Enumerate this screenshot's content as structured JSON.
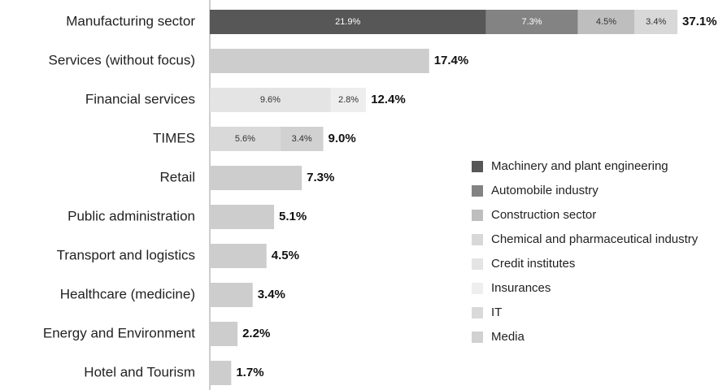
{
  "chart_data": {
    "type": "stacked-bar-horizontal",
    "categories": [
      "Manufacturing sector",
      "Services (without focus)",
      "Financial services",
      "TIMES",
      "Retail",
      "Public administration",
      "Transport and logistics",
      "Healthcare (medicine)",
      "Energy and Environment",
      "Hotel and Tourism"
    ],
    "xlim": [
      0,
      40
    ],
    "series": [
      {
        "name": "Machinery and plant engineering",
        "color": "#575757",
        "values": [
          21.9,
          null,
          null,
          null,
          null,
          null,
          null,
          null,
          null,
          null
        ],
        "value_labels": [
          "21.9%",
          null,
          null,
          null,
          null,
          null,
          null,
          null,
          null,
          null
        ]
      },
      {
        "name": "Automobile industry",
        "color": "#838383",
        "values": [
          7.3,
          null,
          null,
          null,
          null,
          null,
          null,
          null,
          null,
          null
        ],
        "value_labels": [
          "7.3%",
          null,
          null,
          null,
          null,
          null,
          null,
          null,
          null,
          null
        ]
      },
      {
        "name": "Construction sector",
        "color": "#bebebe",
        "values": [
          4.5,
          null,
          null,
          null,
          null,
          null,
          null,
          null,
          null,
          null
        ],
        "value_labels": [
          "4.5%",
          null,
          null,
          null,
          null,
          null,
          null,
          null,
          null,
          null
        ]
      },
      {
        "name": "Chemical and pharmaceutical industry",
        "color": "#d8d8d8",
        "values": [
          3.4,
          null,
          null,
          null,
          null,
          null,
          null,
          null,
          null,
          null
        ],
        "value_labels": [
          "3.4%",
          null,
          null,
          null,
          null,
          null,
          null,
          null,
          null,
          null
        ]
      },
      {
        "name": "Credit institutes",
        "color": "#e4e4e4",
        "values": [
          null,
          null,
          9.6,
          null,
          null,
          null,
          null,
          null,
          null,
          null
        ],
        "value_labels": [
          null,
          null,
          "9.6%",
          null,
          null,
          null,
          null,
          null,
          null,
          null
        ]
      },
      {
        "name": "Insurances",
        "color": "#eeeeee",
        "values": [
          null,
          null,
          2.8,
          null,
          null,
          null,
          null,
          null,
          null,
          null
        ],
        "value_labels": [
          null,
          null,
          "2.8%",
          null,
          null,
          null,
          null,
          null,
          null,
          null
        ]
      },
      {
        "name": "IT",
        "color": "#d9d9d9",
        "values": [
          null,
          null,
          null,
          5.6,
          null,
          null,
          null,
          null,
          null,
          null
        ],
        "value_labels": [
          null,
          null,
          null,
          "5.6%",
          null,
          null,
          null,
          null,
          null,
          null
        ]
      },
      {
        "name": "Media",
        "color": "#d1d1d1",
        "values": [
          null,
          null,
          null,
          3.4,
          null,
          null,
          null,
          null,
          null,
          null
        ],
        "value_labels": [
          null,
          null,
          null,
          "3.4%",
          null,
          null,
          null,
          null,
          null,
          null
        ]
      },
      {
        "color": "#cdcdcd",
        "values": [
          null,
          17.4,
          null,
          null,
          7.3,
          5.1,
          4.5,
          3.4,
          2.2,
          1.7
        ]
      }
    ],
    "totals": [
      37.1,
      17.4,
      12.4,
      9.0,
      7.3,
      5.1,
      4.5,
      3.4,
      2.2,
      1.7
    ],
    "total_labels": [
      "37.1%",
      "17.4%",
      "12.4%",
      "9.0%",
      "7.3%",
      "5.1%",
      "4.5%",
      "3.4%",
      "2.2%",
      "1.7%"
    ]
  }
}
